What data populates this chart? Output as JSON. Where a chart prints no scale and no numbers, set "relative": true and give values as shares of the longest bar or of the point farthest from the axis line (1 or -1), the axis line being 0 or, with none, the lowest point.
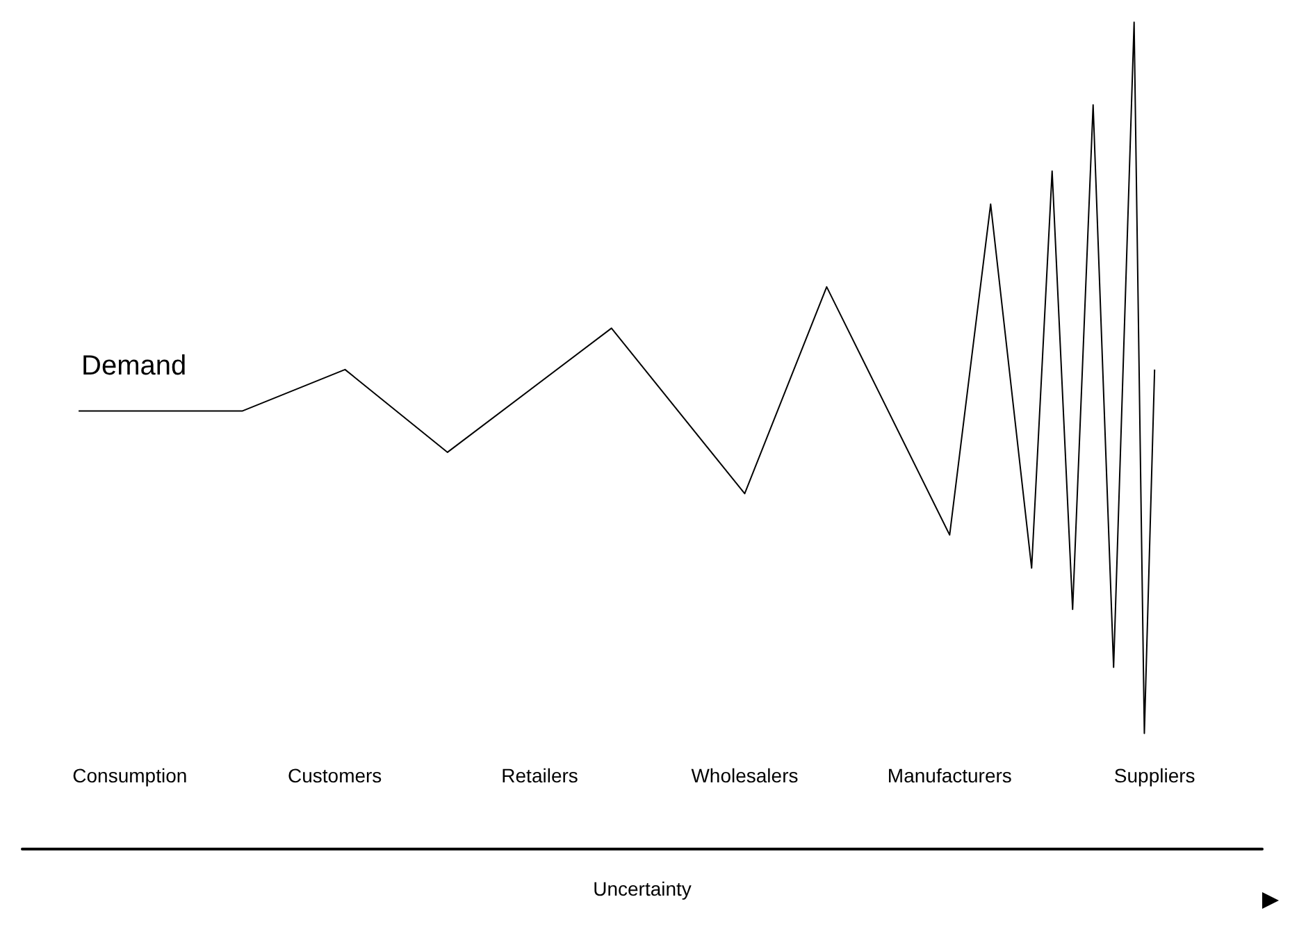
{
  "chart_data": {
    "type": "line",
    "relative": true,
    "xlabel": "Uncertainty",
    "categories": [
      null,
      null,
      null,
      null,
      null,
      null,
      null,
      null,
      null,
      null,
      "Consumption",
      null,
      null,
      null,
      null,
      null,
      null,
      null,
      null,
      null,
      null,
      null,
      null,
      null,
      null,
      null,
      null,
      null,
      null,
      null,
      "Customers",
      null,
      null,
      null,
      null,
      null,
      null,
      null,
      null,
      null,
      null,
      null,
      null,
      null,
      null,
      null,
      null,
      null,
      null,
      null,
      "Retailers",
      null,
      null,
      null,
      null,
      null,
      null,
      null,
      null,
      null,
      null,
      null,
      null,
      null,
      null,
      null,
      null,
      null,
      null,
      null,
      "Wholesalers",
      null,
      null,
      null,
      null,
      null,
      null,
      null,
      null,
      null,
      null,
      null,
      null,
      null,
      null,
      null,
      null,
      null,
      null,
      null,
      "Manufacturers",
      null,
      null,
      null,
      null,
      null,
      null,
      null,
      null,
      null,
      null,
      null,
      null,
      null,
      null,
      null,
      null,
      null,
      null,
      null,
      "Suppliers",
      null,
      null,
      null,
      null,
      null,
      null,
      null,
      null,
      null,
      null
    ],
    "series": [
      {
        "name": "Demand",
        "color": "#000000",
        "values": [
          null,
          null,
          null,
          null,
          null,
          0.53,
          null,
          null,
          null,
          null,
          null,
          null,
          null,
          null,
          null,
          null,
          null,
          null,
          null,
          null,
          null,
          0.53,
          null,
          null,
          null,
          null,
          null,
          null,
          null,
          null,
          null,
          0.58,
          null,
          null,
          null,
          null,
          null,
          null,
          null,
          null,
          null,
          0.48,
          null,
          null,
          null,
          null,
          null,
          null,
          null,
          null,
          null,
          null,
          null,
          null,
          null,
          null,
          null,
          0.63,
          null,
          null,
          null,
          null,
          null,
          null,
          null,
          null,
          null,
          null,
          null,
          null,
          0.43,
          null,
          null,
          null,
          null,
          null,
          null,
          null,
          0.68,
          null,
          null,
          null,
          null,
          null,
          null,
          null,
          null,
          null,
          null,
          null,
          0.38,
          null,
          null,
          null,
          0.78,
          null,
          null,
          null,
          0.34,
          null,
          0.82,
          null,
          0.29,
          null,
          0.9,
          null,
          0.22,
          null,
          1,
          0.14,
          0.58,
          null,
          null,
          null,
          null,
          null,
          null,
          null,
          null,
          null,
          null
        ]
      }
    ],
    "grid": false,
    "legend": false,
    "marker": "none",
    "line_style": "solid"
  }
}
